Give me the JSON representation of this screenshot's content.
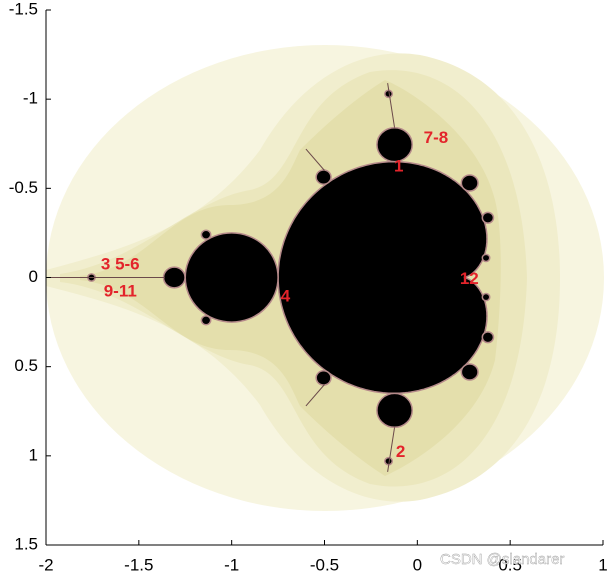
{
  "chart_data": {
    "type": "image",
    "xlim": [
      -2,
      1
    ],
    "ylim": [
      -1.5,
      1.5
    ],
    "y_reversed": true,
    "xticks": [
      -2,
      -1.5,
      -1,
      -0.5,
      0,
      0.5,
      1
    ],
    "yticks": [
      -1.5,
      -1,
      -0.5,
      0,
      0.5,
      1,
      1.5
    ],
    "annotations": [
      "1",
      "7-8",
      "3 5-6",
      "9-11",
      "4",
      "12",
      "2"
    ],
    "annotation_color": "#e3242b",
    "watermark": "CSDN @slandarer"
  }
}
